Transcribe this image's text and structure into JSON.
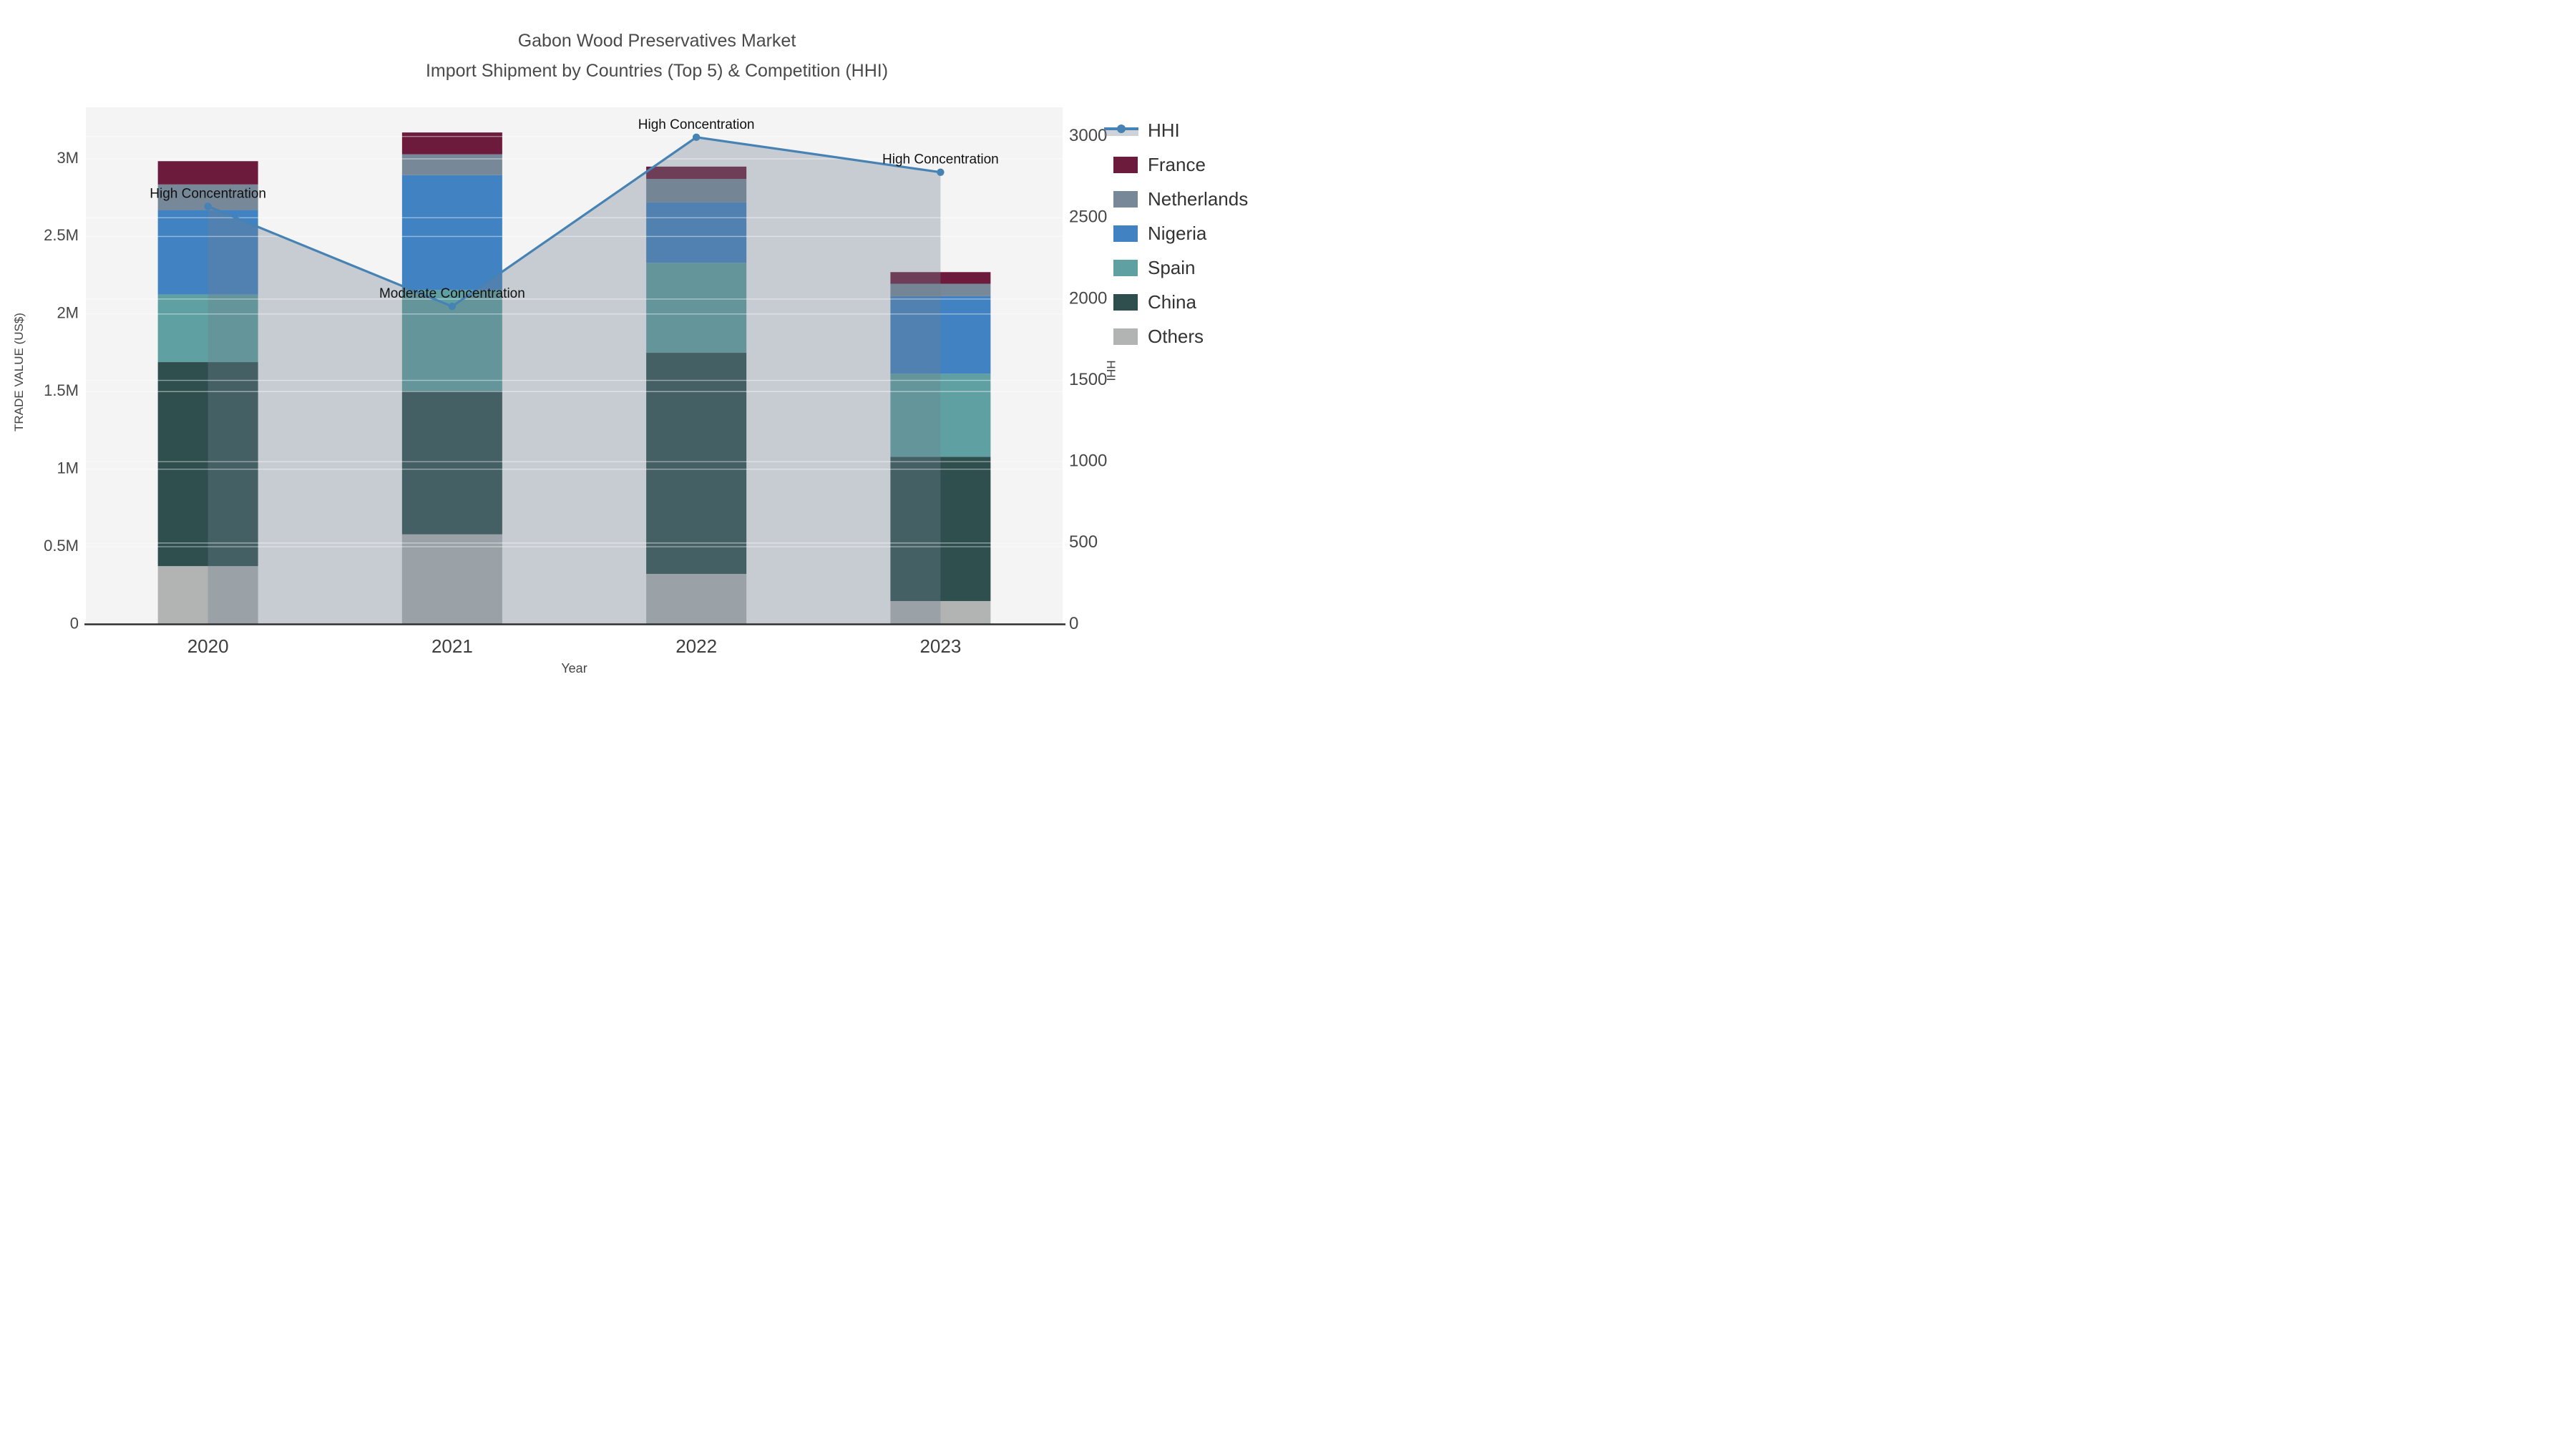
{
  "title": {
    "line1": "Gabon Wood Preservatives Market",
    "line2": "Import Shipment by Countries (Top 5) & Competition (HHI)"
  },
  "chart_data": {
    "type": "bar+line",
    "title": "Gabon Wood Preservatives Market",
    "subtitle": "Import Shipment by Countries (Top 5) & Competition (HHI)",
    "categories": [
      "2020",
      "2021",
      "2022",
      "2023"
    ],
    "xlabel": "Year",
    "left_axis": {
      "label": "TRADE VALUE (US$)",
      "max": 3332000,
      "ticks": [
        {
          "v": 0,
          "t": "0"
        },
        {
          "v": 500000,
          "t": "0.5M"
        },
        {
          "v": 1000000,
          "t": "1M"
        },
        {
          "v": 1500000,
          "t": "1.5M"
        },
        {
          "v": 2000000,
          "t": "2M"
        },
        {
          "v": 2500000,
          "t": "2.5M"
        },
        {
          "v": 3000000,
          "t": "3M"
        }
      ]
    },
    "right_axis": {
      "label": "HHI",
      "max": 3179,
      "ticks": [
        {
          "v": 0,
          "t": "0"
        },
        {
          "v": 500,
          "t": "500"
        },
        {
          "v": 1000,
          "t": "1000"
        },
        {
          "v": 1500,
          "t": "1500"
        },
        {
          "v": 2000,
          "t": "2000"
        },
        {
          "v": 2500,
          "t": "2500"
        },
        {
          "v": 3000,
          "t": "3000"
        }
      ]
    },
    "stack_series": [
      {
        "name": "Others",
        "color": "#b2b4b4",
        "values": [
          375000,
          580000,
          325000,
          150000
        ]
      },
      {
        "name": "China",
        "color": "#2f4f4f",
        "values": [
          1315000,
          925000,
          1425000,
          930000
        ]
      },
      {
        "name": "Spain",
        "color": "#5fa0a2",
        "values": [
          435000,
          650000,
          580000,
          535000
        ]
      },
      {
        "name": "Nigeria",
        "color": "#4182c2",
        "values": [
          545000,
          740000,
          390000,
          500000
        ]
      },
      {
        "name": "Netherlands",
        "color": "#778899",
        "values": [
          165000,
          135000,
          150000,
          80000
        ]
      },
      {
        "name": "France",
        "color": "#6d1b3c",
        "values": [
          150000,
          140000,
          80000,
          75000
        ]
      }
    ],
    "hhi_line": {
      "name": "HHI",
      "color": "#4682b4",
      "area_fill": "#708090",
      "area_opacity": 0.35,
      "values": [
        2570,
        1955,
        2995,
        2780
      ]
    },
    "legend_order": [
      "HHI",
      "France",
      "Netherlands",
      "Nigeria",
      "Spain",
      "China",
      "Others"
    ],
    "annotations": [
      {
        "text": "High Concentration",
        "category_index": 0
      },
      {
        "text": "Moderate Concentration",
        "category_index": 1
      },
      {
        "text": "High Concentration",
        "category_index": 2
      },
      {
        "text": "High Concentration",
        "category_index": 3
      }
    ],
    "colors": {
      "plot_bg": "#f4f4f4",
      "grid": "#ffffff",
      "axis_line": "#2f2f2f",
      "tick_text": "#474747",
      "title_text": "#4a4a4a",
      "annotation_text": "#111111"
    }
  }
}
